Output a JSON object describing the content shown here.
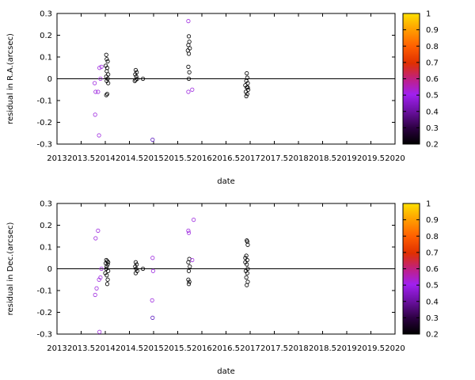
{
  "chart_data": [
    {
      "type": "scatter",
      "xlabel": "date",
      "ylabel": "residual in R.A.(arcsec)",
      "xlim": [
        2013,
        2020
      ],
      "ylim": [
        -0.3,
        0.3
      ],
      "xticks": [
        "2013",
        "2013.5",
        "2014",
        "2014.5",
        "2015",
        "2015.5",
        "2016",
        "2016.5",
        "2017",
        "2017.5",
        "2018",
        "2018.5",
        "2019",
        "2019.5",
        "2020"
      ],
      "yticks": [
        "-0.3",
        "-0.2",
        "-0.1",
        "0",
        "0.1",
        "0.2",
        "0.3"
      ],
      "zero_line": true,
      "colorbar": {
        "min": 0.2,
        "max": 1,
        "ticks": [
          "0.2",
          "0.3",
          "0.4",
          "0.5",
          "0.6",
          "0.7",
          "0.8",
          "0.9",
          "1"
        ]
      },
      "points": [
        {
          "x": 2013.78,
          "y": -0.02,
          "c": 0.5
        },
        {
          "x": 2013.8,
          "y": -0.06,
          "c": 0.5
        },
        {
          "x": 2013.85,
          "y": -0.06,
          "c": 0.5
        },
        {
          "x": 2013.79,
          "y": -0.165,
          "c": 0.5
        },
        {
          "x": 2013.87,
          "y": -0.26,
          "c": 0.5
        },
        {
          "x": 2013.88,
          "y": 0.05,
          "c": 0.5
        },
        {
          "x": 2013.92,
          "y": 0.055,
          "c": 0.5
        },
        {
          "x": 2013.9,
          "y": 0.0,
          "c": 0.5
        },
        {
          "x": 2014.02,
          "y": 0.11,
          "c": 0.2
        },
        {
          "x": 2014.03,
          "y": 0.09,
          "c": 0.2
        },
        {
          "x": 2014.05,
          "y": 0.08,
          "c": 0.2
        },
        {
          "x": 2014.01,
          "y": 0.06,
          "c": 0.2
        },
        {
          "x": 2014.04,
          "y": 0.05,
          "c": 0.2
        },
        {
          "x": 2014.03,
          "y": 0.035,
          "c": 0.2
        },
        {
          "x": 2014.06,
          "y": 0.02,
          "c": 0.2
        },
        {
          "x": 2014.02,
          "y": 0.01,
          "c": 0.2
        },
        {
          "x": 2014.05,
          "y": 0.0,
          "c": 0.2
        },
        {
          "x": 2014.03,
          "y": -0.01,
          "c": 0.2
        },
        {
          "x": 2014.06,
          "y": -0.02,
          "c": 0.2
        },
        {
          "x": 2014.02,
          "y": -0.075,
          "c": 0.2
        },
        {
          "x": 2014.04,
          "y": -0.07,
          "c": 0.2
        },
        {
          "x": 2014.63,
          "y": 0.04,
          "c": 0.2
        },
        {
          "x": 2014.65,
          "y": 0.03,
          "c": 0.2
        },
        {
          "x": 2014.62,
          "y": 0.02,
          "c": 0.2
        },
        {
          "x": 2014.64,
          "y": 0.01,
          "c": 0.2
        },
        {
          "x": 2014.66,
          "y": 0.0,
          "c": 0.2
        },
        {
          "x": 2014.63,
          "y": -0.005,
          "c": 0.2
        },
        {
          "x": 2014.61,
          "y": -0.01,
          "c": 0.2
        },
        {
          "x": 2014.78,
          "y": 0.0,
          "c": 0.2
        },
        {
          "x": 2014.98,
          "y": -0.28,
          "c": 0.3
        },
        {
          "x": 2015.72,
          "y": 0.265,
          "c": 0.5
        },
        {
          "x": 2015.73,
          "y": 0.195,
          "c": 0.2
        },
        {
          "x": 2015.74,
          "y": 0.17,
          "c": 0.2
        },
        {
          "x": 2015.72,
          "y": 0.155,
          "c": 0.2
        },
        {
          "x": 2015.75,
          "y": 0.14,
          "c": 0.2
        },
        {
          "x": 2015.71,
          "y": 0.13,
          "c": 0.2
        },
        {
          "x": 2015.73,
          "y": 0.115,
          "c": 0.2
        },
        {
          "x": 2015.72,
          "y": 0.055,
          "c": 0.2
        },
        {
          "x": 2015.74,
          "y": 0.03,
          "c": 0.2
        },
        {
          "x": 2015.73,
          "y": 0.0,
          "c": 0.2
        },
        {
          "x": 2015.72,
          "y": -0.06,
          "c": 0.5
        },
        {
          "x": 2015.8,
          "y": -0.05,
          "c": 0.5
        },
        {
          "x": 2016.93,
          "y": 0.025,
          "c": 0.2
        },
        {
          "x": 2016.94,
          "y": 0.005,
          "c": 0.2
        },
        {
          "x": 2016.92,
          "y": -0.01,
          "c": 0.2
        },
        {
          "x": 2016.95,
          "y": -0.02,
          "c": 0.2
        },
        {
          "x": 2016.9,
          "y": -0.03,
          "c": 0.2
        },
        {
          "x": 2016.93,
          "y": -0.04,
          "c": 0.2
        },
        {
          "x": 2016.96,
          "y": -0.05,
          "c": 0.2
        },
        {
          "x": 2016.91,
          "y": -0.06,
          "c": 0.2
        },
        {
          "x": 2016.94,
          "y": -0.07,
          "c": 0.2
        },
        {
          "x": 2016.92,
          "y": -0.08,
          "c": 0.2
        },
        {
          "x": 2016.95,
          "y": -0.04,
          "c": 0.2
        }
      ]
    },
    {
      "type": "scatter",
      "xlabel": "date",
      "ylabel": "residual in Dec.(arcsec)",
      "xlim": [
        2013,
        2020
      ],
      "ylim": [
        -0.3,
        0.3
      ],
      "xticks": [
        "2013",
        "2013.5",
        "2014",
        "2014.5",
        "2015",
        "2015.5",
        "2016",
        "2016.5",
        "2017",
        "2017.5",
        "2018",
        "2018.5",
        "2019",
        "2019.5",
        "2020"
      ],
      "yticks": [
        "-0.3",
        "-0.2",
        "-0.1",
        "0",
        "0.1",
        "0.2",
        "0.3"
      ],
      "zero_line": true,
      "colorbar": {
        "min": 0.2,
        "max": 1,
        "ticks": [
          "0.2",
          "0.3",
          "0.4",
          "0.5",
          "0.6",
          "0.7",
          "0.8",
          "0.9",
          "1"
        ]
      },
      "points": [
        {
          "x": 2013.8,
          "y": 0.14,
          "c": 0.5
        },
        {
          "x": 2013.85,
          "y": 0.175,
          "c": 0.5
        },
        {
          "x": 2013.82,
          "y": -0.09,
          "c": 0.5
        },
        {
          "x": 2013.79,
          "y": -0.12,
          "c": 0.5
        },
        {
          "x": 2013.87,
          "y": -0.05,
          "c": 0.5
        },
        {
          "x": 2013.9,
          "y": -0.04,
          "c": 0.5
        },
        {
          "x": 2013.88,
          "y": -0.29,
          "c": 0.5
        },
        {
          "x": 2013.92,
          "y": 0.0,
          "c": 0.5
        },
        {
          "x": 2014.02,
          "y": 0.04,
          "c": 0.2
        },
        {
          "x": 2014.04,
          "y": 0.035,
          "c": 0.2
        },
        {
          "x": 2014.06,
          "y": 0.03,
          "c": 0.2
        },
        {
          "x": 2014.01,
          "y": 0.025,
          "c": 0.2
        },
        {
          "x": 2014.05,
          "y": 0.02,
          "c": 0.2
        },
        {
          "x": 2014.03,
          "y": 0.01,
          "c": 0.2
        },
        {
          "x": 2014.02,
          "y": 0.0,
          "c": 0.2
        },
        {
          "x": 2014.06,
          "y": -0.01,
          "c": 0.2
        },
        {
          "x": 2014.03,
          "y": -0.03,
          "c": 0.2
        },
        {
          "x": 2014.05,
          "y": -0.05,
          "c": 0.2
        },
        {
          "x": 2014.04,
          "y": -0.07,
          "c": 0.2
        },
        {
          "x": 2014.0,
          "y": -0.02,
          "c": 0.2
        },
        {
          "x": 2014.63,
          "y": 0.03,
          "c": 0.2
        },
        {
          "x": 2014.65,
          "y": 0.02,
          "c": 0.2
        },
        {
          "x": 2014.62,
          "y": 0.01,
          "c": 0.2
        },
        {
          "x": 2014.64,
          "y": 0.0,
          "c": 0.2
        },
        {
          "x": 2014.66,
          "y": -0.01,
          "c": 0.2
        },
        {
          "x": 2014.63,
          "y": -0.02,
          "c": 0.2
        },
        {
          "x": 2014.78,
          "y": 0.0,
          "c": 0.2
        },
        {
          "x": 2014.98,
          "y": 0.05,
          "c": 0.5
        },
        {
          "x": 2014.99,
          "y": -0.01,
          "c": 0.5
        },
        {
          "x": 2014.97,
          "y": -0.145,
          "c": 0.5
        },
        {
          "x": 2014.98,
          "y": -0.225,
          "c": 0.3
        },
        {
          "x": 2015.72,
          "y": 0.175,
          "c": 0.5
        },
        {
          "x": 2015.73,
          "y": 0.165,
          "c": 0.5
        },
        {
          "x": 2015.83,
          "y": 0.225,
          "c": 0.5
        },
        {
          "x": 2015.74,
          "y": 0.045,
          "c": 0.2
        },
        {
          "x": 2015.72,
          "y": 0.03,
          "c": 0.2
        },
        {
          "x": 2015.75,
          "y": 0.01,
          "c": 0.2
        },
        {
          "x": 2015.73,
          "y": -0.01,
          "c": 0.2
        },
        {
          "x": 2015.72,
          "y": -0.05,
          "c": 0.2
        },
        {
          "x": 2015.74,
          "y": -0.06,
          "c": 0.2
        },
        {
          "x": 2015.73,
          "y": -0.07,
          "c": 0.2
        },
        {
          "x": 2015.8,
          "y": 0.04,
          "c": 0.5
        },
        {
          "x": 2016.93,
          "y": 0.13,
          "c": 0.2
        },
        {
          "x": 2016.94,
          "y": 0.125,
          "c": 0.2
        },
        {
          "x": 2016.95,
          "y": 0.11,
          "c": 0.2
        },
        {
          "x": 2016.92,
          "y": 0.06,
          "c": 0.2
        },
        {
          "x": 2016.94,
          "y": 0.04,
          "c": 0.2
        },
        {
          "x": 2016.9,
          "y": 0.03,
          "c": 0.2
        },
        {
          "x": 2016.93,
          "y": 0.02,
          "c": 0.2
        },
        {
          "x": 2016.95,
          "y": 0.0,
          "c": 0.2
        },
        {
          "x": 2016.91,
          "y": -0.01,
          "c": 0.2
        },
        {
          "x": 2016.94,
          "y": -0.02,
          "c": 0.2
        },
        {
          "x": 2016.92,
          "y": -0.04,
          "c": 0.2
        },
        {
          "x": 2016.95,
          "y": -0.06,
          "c": 0.2
        },
        {
          "x": 2016.93,
          "y": -0.075,
          "c": 0.2
        },
        {
          "x": 2016.9,
          "y": 0.05,
          "c": 0.2
        }
      ]
    }
  ]
}
